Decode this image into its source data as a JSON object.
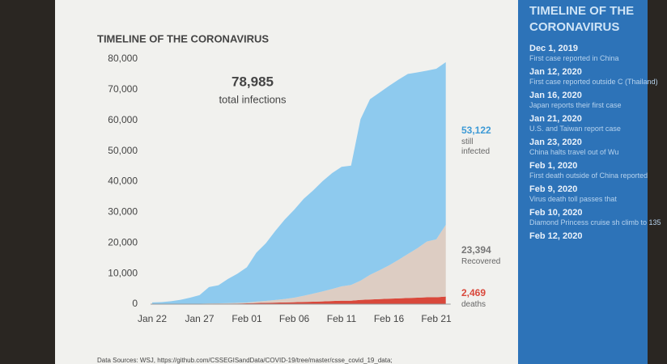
{
  "chart_data": {
    "type": "stacked_area",
    "title": "TIMELINE OF THE CORONAVIRUS",
    "annotation": {
      "value": "78,985",
      "text": "total infections"
    },
    "categories": [
      "Jan 22",
      null,
      null,
      null,
      null,
      "Jan 27",
      null,
      null,
      null,
      null,
      "Feb 01",
      null,
      null,
      null,
      null,
      "Feb 06",
      null,
      null,
      null,
      null,
      "Feb 11",
      null,
      null,
      null,
      null,
      "Feb 16",
      null,
      null,
      null,
      null,
      "Feb 21",
      null
    ],
    "series": [
      {
        "name": "deaths",
        "color": "#d9483b",
        "values": [
          17,
          18,
          26,
          42,
          56,
          82,
          131,
          133,
          171,
          213,
          259,
          362,
          426,
          492,
          564,
          634,
          719,
          806,
          906,
          1013,
          1113,
          1118,
          1371,
          1523,
          1666,
          1770,
          1868,
          2007,
          2122,
          2247,
          2251,
          2469
        ],
        "value_labels": [
          null,
          null,
          null,
          null,
          null,
          null,
          null,
          null,
          null,
          null,
          null,
          null,
          null,
          null,
          null,
          null,
          null,
          null,
          null,
          null,
          null,
          null,
          null,
          null,
          null,
          null,
          null,
          null,
          null,
          null,
          null,
          "2,469"
        ]
      },
      {
        "name": "Recovered",
        "color": "#ddcdc3",
        "values": [
          28,
          30,
          36,
          39,
          52,
          61,
          107,
          126,
          143,
          222,
          284,
          472,
          623,
          852,
          1124,
          1487,
          2011,
          2616,
          3244,
          3946,
          4683,
          5150,
          6295,
          8058,
          9395,
          10865,
          12583,
          14352,
          16121,
          18177,
          18890,
          23394
        ],
        "value_labels": [
          null,
          null,
          null,
          null,
          null,
          null,
          null,
          null,
          null,
          null,
          null,
          null,
          null,
          null,
          null,
          null,
          null,
          null,
          null,
          null,
          null,
          null,
          null,
          null,
          null,
          null,
          null,
          null,
          null,
          null,
          null,
          "23,394"
        ]
      },
      {
        "name": "still infected",
        "color": "#8ecaee",
        "values": [
          510,
          606,
          879,
          1353,
          2010,
          2784,
          5340,
          5907,
          7920,
          9492,
          11495,
          15953,
          18832,
          22548,
          25947,
          28696,
          31661,
          33698,
          36000,
          37803,
          39006,
          38953,
          52702,
          57304,
          57969,
          58589,
          58807,
          58777,
          57396,
          55773,
          55678,
          53122
        ],
        "value_labels": [
          null,
          null,
          null,
          null,
          null,
          null,
          null,
          null,
          null,
          null,
          null,
          null,
          null,
          null,
          null,
          null,
          null,
          null,
          null,
          null,
          null,
          null,
          null,
          null,
          null,
          null,
          null,
          null,
          null,
          null,
          null,
          "53,122"
        ]
      }
    ],
    "ylim": [
      0,
      80000
    ],
    "yticks": [
      0,
      {
        "value": 10000,
        "label": "10,000"
      },
      {
        "value": 20000,
        "label": "20,000"
      },
      {
        "value": 30000,
        "label": "30,000"
      },
      {
        "value": 40000,
        "label": "40,000"
      },
      {
        "value": 50000,
        "label": "50,000"
      },
      {
        "value": 60000,
        "label": "60,000"
      },
      {
        "value": 70000,
        "label": "70,000"
      },
      {
        "value": 80000,
        "label": "80,000"
      }
    ],
    "source": "Data Sources: WSJ, https://github.com/CSSEGISandData/COVID-19/tree/master/csse_covid_19_data;"
  },
  "sidebar": {
    "title": "TIMELINE OF THE CORONAVIRUS",
    "events": [
      {
        "date": "Dec 1, 2019",
        "text": "First case reported in China"
      },
      {
        "date": "Jan 12, 2020",
        "text": "First case reported outside C (Thailand)"
      },
      {
        "date": "Jan 16, 2020",
        "text": "Japan reports their first case"
      },
      {
        "date": "Jan 21, 2020",
        "text": "U.S. and Taiwan report case"
      },
      {
        "date": "Jan 23, 2020",
        "text": "China halts travel out of Wu"
      },
      {
        "date": "Feb 1, 2020",
        "text": "First death outside of China reported"
      },
      {
        "date": "Feb 9, 2020",
        "text": "Virus death toll passes that"
      },
      {
        "date": "Feb 10, 2020",
        "text": "Diamond Princess cruise sh climb to 135"
      },
      {
        "date": "Feb 12, 2020",
        "text": ""
      }
    ]
  }
}
